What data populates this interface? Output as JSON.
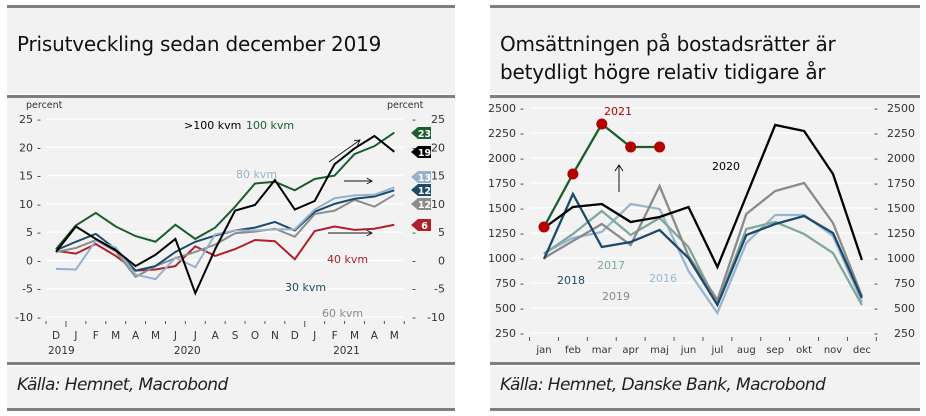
{
  "left": {
    "title": "Prisutveckling sedan december 2019",
    "source": "Källa: Hemnet, Macrobond"
  },
  "right": {
    "title_line1": "Omsättningen på bostadsrätter är",
    "title_line2": "betydligt högre relativ tidigare år",
    "source": "Källa: Hemnet, Danske Bank, Macrobond"
  },
  "chart_data": [
    {
      "type": "line",
      "title": "Prisutveckling sedan december 2019",
      "ylabel_left": "percent",
      "ylabel_right": "percent",
      "ylim": [
        -10,
        25
      ],
      "yticks": [
        25,
        20,
        15,
        10,
        5,
        0,
        -5,
        -10
      ],
      "x": [
        "D",
        "J",
        "F",
        "M",
        "A",
        "M",
        "J",
        "J",
        "A",
        "S",
        "O",
        "N",
        "D",
        "J",
        "F",
        "M",
        "A",
        "M"
      ],
      "year_labels": [
        {
          "label": "2019",
          "at": 0
        },
        {
          "label": "2020",
          "at": 7
        },
        {
          "label": "2021",
          "at": 15
        }
      ],
      "grid": true,
      "series": [
        {
          "name": ">100 kvm",
          "color": "#000000",
          "end_label": "19",
          "values": [
            1.5,
            6.0,
            3.8,
            1.8,
            -1.0,
            1.0,
            3.8,
            -5.8,
            2.0,
            8.8,
            9.8,
            14.2,
            9.0,
            10.5,
            17.0,
            19.8,
            22.0,
            19.2
          ]
        },
        {
          "name": "100 kvm",
          "color": "#1b5e2e",
          "end_label": "23",
          "values": [
            2.0,
            6.2,
            8.4,
            6.0,
            4.3,
            3.3,
            6.3,
            3.8,
            5.8,
            9.5,
            13.6,
            13.9,
            12.4,
            14.4,
            15.0,
            18.8,
            20.2,
            22.6
          ]
        },
        {
          "name": "80 kvm",
          "color": "#95b1cb",
          "end_label": "13",
          "values": [
            -1.5,
            -1.6,
            3.5,
            2.3,
            -2.5,
            -3.3,
            0.5,
            -1.2,
            4.6,
            5.3,
            5.3,
            5.5,
            5.5,
            9.0,
            11.0,
            11.5,
            11.6,
            12.9
          ]
        },
        {
          "name": "30 kvm",
          "color": "#1d4a6b",
          "end_label": "12",
          "values": [
            1.8,
            3.3,
            4.7,
            2.0,
            -1.8,
            -1.0,
            1.5,
            3.3,
            4.4,
            5.3,
            5.8,
            6.8,
            5.3,
            8.6,
            10.0,
            10.9,
            11.3,
            12.4
          ]
        },
        {
          "name": "60 kvm",
          "color": "#8c8c8c",
          "end_label": "12",
          "values": [
            1.5,
            2.2,
            3.6,
            1.6,
            -2.9,
            -1.0,
            0.4,
            1.5,
            2.8,
            4.8,
            5.1,
            5.6,
            4.2,
            8.2,
            8.8,
            10.7,
            9.5,
            11.6
          ]
        },
        {
          "name": "40 kvm",
          "color": "#b0202a",
          "end_label": "6",
          "values": [
            1.7,
            1.2,
            2.9,
            0.8,
            -1.8,
            -1.6,
            -1.0,
            2.5,
            0.8,
            2.0,
            3.6,
            3.4,
            0.2,
            5.2,
            6.0,
            5.4,
            5.6,
            6.3
          ]
        }
      ],
      "annotations": [
        ">100 kvm",
        "100 kvm",
        "80 kvm",
        "40 kvm",
        "30 kvm",
        "60 kvm"
      ]
    },
    {
      "type": "line",
      "title": "Omsättningen på bostadsrätter är betydligt högre relativ tidigare år",
      "ylim": [
        250,
        2500
      ],
      "yticks": [
        2500,
        2250,
        2000,
        1750,
        1500,
        1250,
        1000,
        750,
        500,
        250
      ],
      "x": [
        "jan",
        "feb",
        "mar",
        "apr",
        "maj",
        "jun",
        "jul",
        "aug",
        "sep",
        "okt",
        "nov",
        "dec"
      ],
      "grid": true,
      "series": [
        {
          "name": "2016",
          "color": "#98b6d0",
          "values": [
            1050,
            1200,
            1260,
            1540,
            1490,
            870,
            450,
            1150,
            1430,
            1430,
            1220,
            560
          ]
        },
        {
          "name": "2017",
          "color": "#7fa89a",
          "values": [
            1040,
            1240,
            1470,
            1230,
            1400,
            1110,
            540,
            1290,
            1360,
            1240,
            1050,
            530
          ]
        },
        {
          "name": "2019",
          "color": "#8a8a8a",
          "values": [
            1000,
            1170,
            1340,
            1130,
            1720,
            1020,
            580,
            1440,
            1670,
            1750,
            1350,
            620
          ]
        },
        {
          "name": "2018",
          "color": "#1d4a6b",
          "values": [
            990,
            1640,
            1110,
            1160,
            1280,
            1000,
            530,
            1230,
            1340,
            1420,
            1250,
            600
          ]
        },
        {
          "name": "2020",
          "color": "#000000",
          "values": [
            1300,
            1510,
            1540,
            1360,
            1410,
            1510,
            910,
            1620,
            2330,
            2270,
            1840,
            980
          ]
        },
        {
          "name": "2021",
          "color": "#1b5e2e",
          "marker_color": "#b30000",
          "values": [
            1310,
            1840,
            2340,
            2110,
            2110
          ]
        }
      ]
    }
  ]
}
